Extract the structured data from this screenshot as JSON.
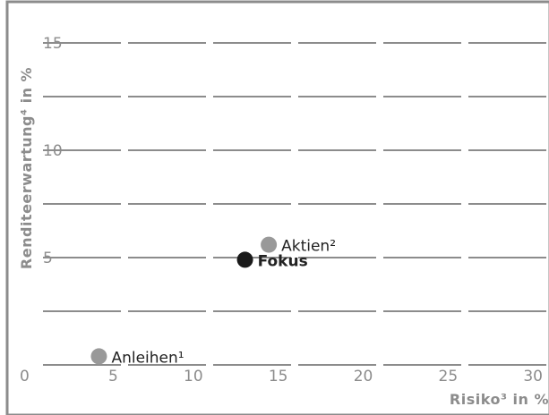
{
  "chart_data": {
    "type": "scatter",
    "xlabel": "Risiko³ in %",
    "ylabel": "Renditeerwartung⁴ in %",
    "xlim": [
      0,
      30
    ],
    "ylim": [
      0,
      17
    ],
    "xticks": [
      "0",
      "5",
      "10",
      "15",
      "20",
      "25",
      "30"
    ],
    "yticks": [
      "0",
      "5",
      "10",
      "15"
    ],
    "grid": true,
    "points": [
      {
        "label": "Anleihen¹",
        "x": 4.4,
        "y": 0.4,
        "color": "#999999",
        "bold": false
      },
      {
        "label": "Aktien²",
        "x": 14.4,
        "y": 5.6,
        "color": "#999999",
        "bold": false
      },
      {
        "label": "Fokus",
        "x": 13.0,
        "y": 4.9,
        "color": "#1a1a1a",
        "bold": true
      }
    ]
  }
}
